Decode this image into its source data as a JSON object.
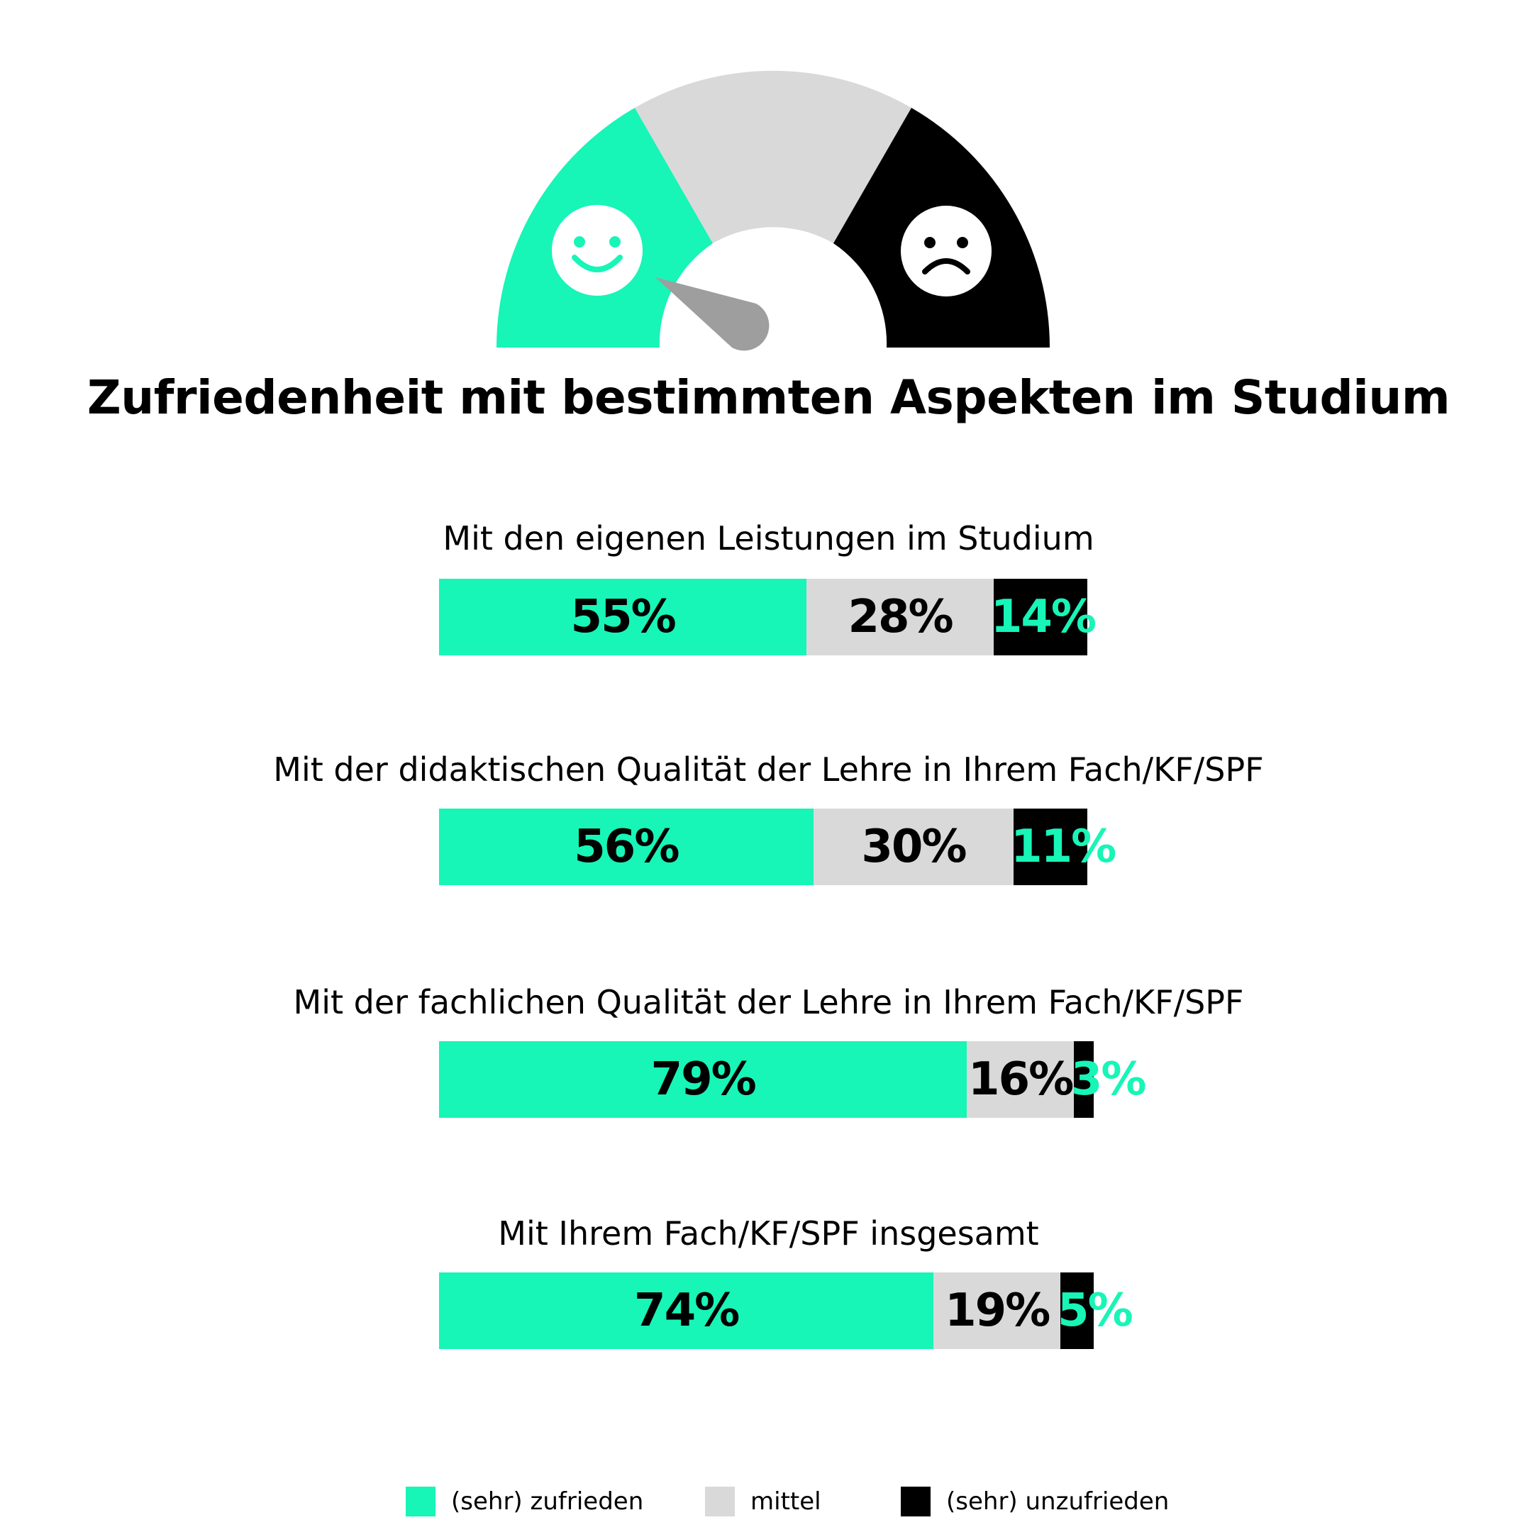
{
  "title": "Zufriedenheit mit bestimmten Aspekten im Studium",
  "colors": {
    "satisfied": "#17f5b7",
    "neutral": "#d9d9d9",
    "unsatisfied": "#000000",
    "needle": "#9e9e9e"
  },
  "gauge": {
    "icons": [
      "smiley-face-icon",
      "frowny-face-icon"
    ]
  },
  "legend": [
    {
      "label": "(sehr) zufrieden",
      "color": "#17f5b7"
    },
    {
      "label": "mittel",
      "color": "#d9d9d9"
    },
    {
      "label": "(sehr) unzufrieden",
      "color": "#000000"
    }
  ],
  "chart_data": {
    "type": "bar",
    "orientation": "horizontal-stacked",
    "title": "Zufriedenheit mit bestimmten Aspekten im Studium",
    "categories": [
      "Mit den eigenen Leistungen im Studium",
      "Mit der didaktischen Qualität der Lehre in Ihrem Fach/KF/SPF",
      "Mit der fachlichen Qualität der Lehre in Ihrem Fach/KF/SPF",
      "Mit Ihrem Fach/KF/SPF insgesamt"
    ],
    "series": [
      {
        "name": "(sehr) zufrieden",
        "values": [
          55,
          56,
          79,
          74
        ],
        "labels": [
          "55%",
          "56%",
          "79%",
          "74%"
        ]
      },
      {
        "name": "mittel",
        "values": [
          28,
          30,
          16,
          19
        ],
        "labels": [
          "28%",
          "30%",
          "16%",
          "19%"
        ]
      },
      {
        "name": "(sehr) unzufrieden",
        "values": [
          14,
          11,
          3,
          5
        ],
        "labels": [
          "14%",
          "11%",
          "3%",
          "5%"
        ]
      }
    ],
    "legend_position": "bottom",
    "grid": false
  }
}
